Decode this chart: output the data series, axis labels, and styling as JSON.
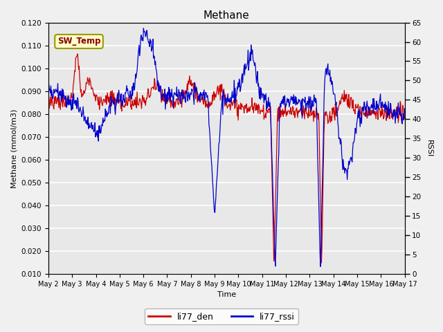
{
  "title": "Methane",
  "ylabel_left": "Methane (mmol/m3)",
  "ylabel_right": "RSSI",
  "xlabel": "Time",
  "ylim_left": [
    0.01,
    0.12
  ],
  "ylim_right": [
    0,
    65
  ],
  "yticks_left": [
    0.01,
    0.02,
    0.03,
    0.04,
    0.05,
    0.06,
    0.07,
    0.08,
    0.09,
    0.1,
    0.11,
    0.12
  ],
  "yticks_right": [
    0,
    5,
    10,
    15,
    20,
    25,
    30,
    35,
    40,
    45,
    50,
    55,
    60,
    65
  ],
  "bg_color": "#e8e8e8",
  "fig_bg_color": "#f0f0f0",
  "grid_color": "#ffffff",
  "line_color_den": "#cc0000",
  "line_color_rssi": "#0000cc",
  "legend_den": "li77_den",
  "legend_rssi": "li77_rssi",
  "sw_temp_label": "SW_Temp",
  "sw_temp_facecolor": "#ffffcc",
  "sw_temp_edgecolor": "#999900",
  "sw_temp_textcolor": "#880000",
  "x_tick_labels": [
    "May 2",
    "May 3",
    "May 4",
    "May 5",
    "May 6",
    "May 7",
    "May 8",
    "May 9",
    "May 10",
    "May 11",
    "May 12",
    "May 13",
    "May 14",
    "May 15",
    "May 16",
    "May 17"
  ],
  "n_days": 15,
  "pts_per_day": 48
}
